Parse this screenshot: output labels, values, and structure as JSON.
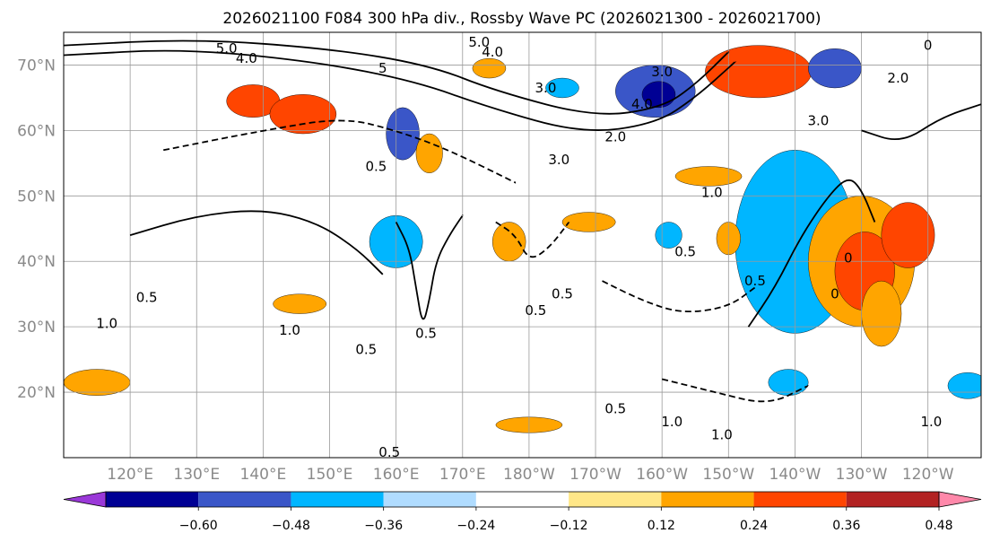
{
  "chart_data": {
    "type": "heatmap",
    "title": "2026021100 F084 300 hPa div., Rossby Wave PC (2026021300 - 2026021700)",
    "projection": "cylindrical",
    "lon_range": [
      110,
      248
    ],
    "lat_range": [
      10,
      75
    ],
    "lat_ticks": [
      {
        "value": 70,
        "label": "70°N"
      },
      {
        "value": 60,
        "label": "60°N"
      },
      {
        "value": 50,
        "label": "50°N"
      },
      {
        "value": 40,
        "label": "40°N"
      },
      {
        "value": 30,
        "label": "30°N"
      },
      {
        "value": 20,
        "label": "20°N"
      }
    ],
    "lon_ticks": [
      {
        "value": 120,
        "label": "120°E"
      },
      {
        "value": 130,
        "label": "130°E"
      },
      {
        "value": 140,
        "label": "140°E"
      },
      {
        "value": 150,
        "label": "150°E"
      },
      {
        "value": 160,
        "label": "160°E"
      },
      {
        "value": 170,
        "label": "170°E"
      },
      {
        "value": 180,
        "label": "180°W"
      },
      {
        "value": 190,
        "label": "170°W"
      },
      {
        "value": 200,
        "label": "160°W"
      },
      {
        "value": 210,
        "label": "150°W"
      },
      {
        "value": 220,
        "label": "140°W"
      },
      {
        "value": 230,
        "label": "130°W"
      },
      {
        "value": 240,
        "label": "120°W"
      }
    ],
    "colorbar": {
      "levels": [
        -0.6,
        -0.48,
        -0.36,
        -0.24,
        -0.12,
        0.12,
        0.24,
        0.36,
        0.48,
        0.6
      ],
      "tick_labels": [
        "−0.60",
        "−0.48",
        "−0.36",
        "−0.24",
        "−0.12",
        "0.12",
        "0.24",
        "0.36",
        "0.48",
        "0.60"
      ],
      "colors": [
        "#9a38d8",
        "#000094",
        "#3a56c8",
        "#00b6ff",
        "#b0dcff",
        "#ffffff",
        "#ffe788",
        "#ffa500",
        "#ff4500",
        "#b22222",
        "#ff88aa"
      ],
      "extend": "both"
    },
    "shaded_blobs": [
      {
        "lon": 219.5,
        "lat": 45.0,
        "value": -0.66,
        "rx": 3.5,
        "ry": 11
      },
      {
        "lon": 221.0,
        "lat": 40.0,
        "value": -0.5,
        "rx": 5.5,
        "ry": 8
      },
      {
        "lon": 220.0,
        "lat": 43.0,
        "value": -0.3,
        "rx": 9,
        "ry": 14
      },
      {
        "lon": 230.0,
        "lat": 40.0,
        "value": 0.3,
        "rx": 8,
        "ry": 10
      },
      {
        "lon": 230.5,
        "lat": 38.5,
        "value": 0.45,
        "rx": 4.5,
        "ry": 6
      },
      {
        "lon": 237.0,
        "lat": 44.0,
        "value": 0.37,
        "rx": 4,
        "ry": 5
      },
      {
        "lon": 199.0,
        "lat": 66.0,
        "value": -0.42,
        "rx": 6,
        "ry": 4
      },
      {
        "lon": 199.5,
        "lat": 65.5,
        "value": -0.54,
        "rx": 2.5,
        "ry": 2
      },
      {
        "lon": 214.5,
        "lat": 69.0,
        "value": 0.38,
        "rx": 8,
        "ry": 4
      },
      {
        "lon": 226.0,
        "lat": 69.5,
        "value": -0.4,
        "rx": 4,
        "ry": 3
      },
      {
        "lon": 138.5,
        "lat": 64.5,
        "value": 0.38,
        "rx": 4,
        "ry": 2.5
      },
      {
        "lon": 146.0,
        "lat": 62.5,
        "value": 0.37,
        "rx": 5,
        "ry": 3
      },
      {
        "lon": 161.0,
        "lat": 59.5,
        "value": -0.4,
        "rx": 2.5,
        "ry": 4
      },
      {
        "lon": 165.0,
        "lat": 56.5,
        "value": 0.34,
        "rx": 2,
        "ry": 3
      },
      {
        "lon": 160.0,
        "lat": 43.0,
        "value": -0.3,
        "rx": 4,
        "ry": 4
      },
      {
        "lon": 177.0,
        "lat": 43.0,
        "value": 0.3,
        "rx": 2.5,
        "ry": 3
      },
      {
        "lon": 201.0,
        "lat": 44.0,
        "value": -0.27,
        "rx": 2,
        "ry": 2
      },
      {
        "lon": 210.0,
        "lat": 43.5,
        "value": 0.33,
        "rx": 1.8,
        "ry": 2.5
      },
      {
        "lon": 219.0,
        "lat": 21.5,
        "value": -0.3,
        "rx": 3,
        "ry": 2
      },
      {
        "lon": 233.0,
        "lat": 32.0,
        "value": 0.32,
        "rx": 3,
        "ry": 5
      },
      {
        "lon": 115.0,
        "lat": 21.5,
        "value": 0.3,
        "rx": 5,
        "ry": 2
      },
      {
        "lon": 145.5,
        "lat": 33.5,
        "value": 0.28,
        "rx": 4,
        "ry": 1.5
      },
      {
        "lon": 180.0,
        "lat": 15.0,
        "value": 0.27,
        "rx": 5,
        "ry": 1.2
      },
      {
        "lon": 189.0,
        "lat": 46.0,
        "value": 0.28,
        "rx": 4,
        "ry": 1.5
      },
      {
        "lon": 207.0,
        "lat": 53.0,
        "value": 0.27,
        "rx": 5,
        "ry": 1.5
      },
      {
        "lon": 185.0,
        "lat": 66.5,
        "value": -0.28,
        "rx": 2.5,
        "ry": 1.5
      },
      {
        "lon": 174.0,
        "lat": 69.5,
        "value": 0.27,
        "rx": 2.5,
        "ry": 1.5
      },
      {
        "lon": 246.0,
        "lat": 21.0,
        "value": -0.3,
        "rx": 3,
        "ry": 2
      }
    ],
    "contours": [
      {
        "lons": [
          110,
          130,
          150,
          165,
          175,
          190,
          200,
          205,
          210
        ],
        "lats": [
          73,
          74,
          72.5,
          70,
          66,
          62,
          63.5,
          67,
          72
        ],
        "dashed": false
      },
      {
        "lons": [
          110,
          128,
          148,
          163,
          174,
          188,
          199,
          205,
          211
        ],
        "lats": [
          71.5,
          72.5,
          70.5,
          67.5,
          63.5,
          59.5,
          61,
          65,
          70.5
        ],
        "dashed": false
      },
      {
        "lons": [
          125,
          140,
          152,
          160,
          168,
          178
        ],
        "lats": [
          57,
          60,
          62,
          60,
          57,
          52
        ],
        "dashed": true
      },
      {
        "lons": [
          160,
          162,
          163,
          164,
          165,
          166,
          168,
          170
        ],
        "lats": [
          46,
          42,
          36,
          30,
          34,
          40,
          44,
          47
        ],
        "dashed": false
      },
      {
        "lons": [
          175,
          178,
          180,
          183,
          186
        ],
        "lats": [
          46,
          44,
          40,
          42,
          46
        ],
        "dashed": true
      },
      {
        "lons": [
          213,
          217,
          221,
          225,
          228,
          230,
          232
        ],
        "lats": [
          30,
          36,
          44,
          50,
          53,
          51,
          46
        ],
        "dashed": false
      },
      {
        "lons": [
          191,
          197,
          203,
          210,
          214
        ],
        "lats": [
          37,
          34,
          32,
          33,
          36
        ],
        "dashed": true
      },
      {
        "lons": [
          120,
          130,
          140,
          148,
          154,
          158
        ],
        "lats": [
          44,
          47,
          48,
          46,
          42,
          38
        ],
        "dashed": false
      },
      {
        "lons": [
          200,
          208,
          216,
          222
        ],
        "lats": [
          22,
          20,
          18,
          21
        ],
        "dashed": true
      },
      {
        "lons": [
          230,
          236,
          242,
          248
        ],
        "lats": [
          60,
          58,
          62,
          64
        ],
        "dashed": false
      }
    ],
    "contour_labels": [
      {
        "lon": 134.5,
        "lat": 72.5,
        "text": "5.0"
      },
      {
        "lon": 137.5,
        "lat": 71.0,
        "text": "4.0"
      },
      {
        "lon": 172.5,
        "lat": 73.5,
        "text": "5.0"
      },
      {
        "lon": 174.5,
        "lat": 72.0,
        "text": "4.0"
      },
      {
        "lon": 158.0,
        "lat": 69.5,
        "text": "5"
      },
      {
        "lon": 200.0,
        "lat": 69.0,
        "text": "3.0"
      },
      {
        "lon": 182.5,
        "lat": 66.5,
        "text": "3.0"
      },
      {
        "lon": 197.0,
        "lat": 64.0,
        "text": "4.0"
      },
      {
        "lon": 193.0,
        "lat": 59.0,
        "text": "2.0"
      },
      {
        "lon": 184.5,
        "lat": 55.5,
        "text": "3.0"
      },
      {
        "lon": 157.0,
        "lat": 54.5,
        "text": "0.5"
      },
      {
        "lon": 207.5,
        "lat": 50.5,
        "text": "1.0"
      },
      {
        "lon": 203.5,
        "lat": 41.5,
        "text": "0.5"
      },
      {
        "lon": 185.0,
        "lat": 35.0,
        "text": "0.5"
      },
      {
        "lon": 181.0,
        "lat": 32.5,
        "text": "0.5"
      },
      {
        "lon": 116.5,
        "lat": 30.5,
        "text": "1.0"
      },
      {
        "lon": 122.5,
        "lat": 34.5,
        "text": "0.5"
      },
      {
        "lon": 144.0,
        "lat": 29.5,
        "text": "1.0"
      },
      {
        "lon": 164.5,
        "lat": 29.0,
        "text": "0.5"
      },
      {
        "lon": 155.5,
        "lat": 26.5,
        "text": "0.5"
      },
      {
        "lon": 159.0,
        "lat": 10.8,
        "text": "0.5"
      },
      {
        "lon": 193.0,
        "lat": 17.5,
        "text": "0.5"
      },
      {
        "lon": 209.0,
        "lat": 13.5,
        "text": "1.0"
      },
      {
        "lon": 201.5,
        "lat": 15.5,
        "text": "1.0"
      },
      {
        "lon": 240.5,
        "lat": 15.5,
        "text": "1.0"
      },
      {
        "lon": 235.5,
        "lat": 68.0,
        "text": "2.0"
      },
      {
        "lon": 240.0,
        "lat": 73.0,
        "text": "0"
      },
      {
        "lon": 223.5,
        "lat": 61.5,
        "text": "3.0"
      },
      {
        "lon": 214.0,
        "lat": 37.0,
        "text": "0.5"
      },
      {
        "lon": 228.0,
        "lat": 40.5,
        "text": "0"
      },
      {
        "lon": 226.0,
        "lat": 35.0,
        "text": "0"
      }
    ]
  }
}
